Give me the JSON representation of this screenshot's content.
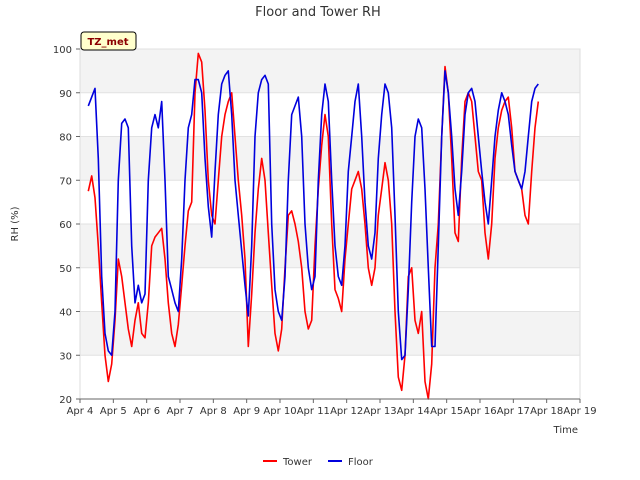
{
  "chart_data": {
    "type": "line",
    "title": "Floor and Tower RH",
    "xlabel": "Time",
    "ylabel": "RH (%)",
    "badge": "TZ_met",
    "ylim": [
      20,
      100
    ],
    "yticks": [
      20,
      30,
      40,
      50,
      60,
      70,
      80,
      90,
      100
    ],
    "xlim": [
      4,
      19
    ],
    "xticks": [
      {
        "value": 4,
        "label": "Apr 4"
      },
      {
        "value": 5,
        "label": "Apr 5"
      },
      {
        "value": 6,
        "label": "Apr 6"
      },
      {
        "value": 7,
        "label": "Apr 7"
      },
      {
        "value": 8,
        "label": "Apr 8"
      },
      {
        "value": 9,
        "label": "Apr 9"
      },
      {
        "value": 10,
        "label": "Apr 10"
      },
      {
        "value": 11,
        "label": "Apr 11"
      },
      {
        "value": 12,
        "label": "Apr 12"
      },
      {
        "value": 13,
        "label": "Apr 13"
      },
      {
        "value": 14,
        "label": "Apr 14"
      },
      {
        "value": 15,
        "label": "Apr 15"
      },
      {
        "value": 16,
        "label": "Apr 16"
      },
      {
        "value": 17,
        "label": "Apr 17"
      },
      {
        "value": 18,
        "label": "Apr 18"
      },
      {
        "value": 19,
        "label": "Apr 19"
      }
    ],
    "legend_position": "bottom-center",
    "series": [
      {
        "name": "Tower",
        "color": "#ff0000",
        "points": [
          [
            4.25,
            67.5
          ],
          [
            4.35,
            71
          ],
          [
            4.45,
            66
          ],
          [
            4.55,
            55
          ],
          [
            4.65,
            42
          ],
          [
            4.75,
            30
          ],
          [
            4.85,
            24
          ],
          [
            4.95,
            28
          ],
          [
            5.05,
            38
          ],
          [
            5.15,
            52
          ],
          [
            5.25,
            48
          ],
          [
            5.35,
            42
          ],
          [
            5.45,
            36
          ],
          [
            5.55,
            32
          ],
          [
            5.65,
            38
          ],
          [
            5.75,
            42
          ],
          [
            5.85,
            35
          ],
          [
            5.95,
            34
          ],
          [
            6.05,
            42
          ],
          [
            6.15,
            55
          ],
          [
            6.25,
            57
          ],
          [
            6.35,
            58
          ],
          [
            6.45,
            59
          ],
          [
            6.55,
            52
          ],
          [
            6.65,
            42
          ],
          [
            6.75,
            35
          ],
          [
            6.85,
            32
          ],
          [
            6.95,
            37
          ],
          [
            7.05,
            46
          ],
          [
            7.15,
            55
          ],
          [
            7.25,
            63
          ],
          [
            7.35,
            65
          ],
          [
            7.45,
            90
          ],
          [
            7.55,
            99
          ],
          [
            7.65,
            97
          ],
          [
            7.75,
            86
          ],
          [
            7.85,
            70
          ],
          [
            7.95,
            62
          ],
          [
            8.05,
            60
          ],
          [
            8.15,
            70
          ],
          [
            8.25,
            80
          ],
          [
            8.35,
            85
          ],
          [
            8.45,
            88
          ],
          [
            8.55,
            90
          ],
          [
            8.65,
            80
          ],
          [
            8.75,
            70
          ],
          [
            8.85,
            62
          ],
          [
            8.95,
            52
          ],
          [
            9.05,
            32
          ],
          [
            9.15,
            44
          ],
          [
            9.25,
            58
          ],
          [
            9.35,
            68
          ],
          [
            9.45,
            75
          ],
          [
            9.55,
            70
          ],
          [
            9.65,
            58
          ],
          [
            9.75,
            46
          ],
          [
            9.85,
            35
          ],
          [
            9.95,
            31
          ],
          [
            10.05,
            36
          ],
          [
            10.15,
            50
          ],
          [
            10.25,
            62
          ],
          [
            10.35,
            63
          ],
          [
            10.45,
            60
          ],
          [
            10.55,
            56
          ],
          [
            10.65,
            50
          ],
          [
            10.75,
            40
          ],
          [
            10.85,
            36
          ],
          [
            10.95,
            38
          ],
          [
            11.05,
            55
          ],
          [
            11.15,
            68
          ],
          [
            11.25,
            78
          ],
          [
            11.35,
            85
          ],
          [
            11.45,
            80
          ],
          [
            11.55,
            60
          ],
          [
            11.65,
            45
          ],
          [
            11.75,
            43
          ],
          [
            11.85,
            40
          ],
          [
            11.95,
            52
          ],
          [
            12.05,
            60
          ],
          [
            12.15,
            68
          ],
          [
            12.25,
            70
          ],
          [
            12.35,
            72
          ],
          [
            12.45,
            68
          ],
          [
            12.55,
            60
          ],
          [
            12.65,
            50
          ],
          [
            12.75,
            46
          ],
          [
            12.85,
            50
          ],
          [
            12.95,
            62
          ],
          [
            13.05,
            68
          ],
          [
            13.15,
            74
          ],
          [
            13.25,
            70
          ],
          [
            13.35,
            60
          ],
          [
            13.45,
            40
          ],
          [
            13.55,
            25
          ],
          [
            13.65,
            22
          ],
          [
            13.75,
            30
          ],
          [
            13.85,
            48
          ],
          [
            13.95,
            50
          ],
          [
            14.05,
            38
          ],
          [
            14.15,
            35
          ],
          [
            14.25,
            40
          ],
          [
            14.35,
            24
          ],
          [
            14.45,
            20
          ],
          [
            14.55,
            28
          ],
          [
            14.65,
            50
          ],
          [
            14.75,
            60
          ],
          [
            14.85,
            80
          ],
          [
            14.95,
            96
          ],
          [
            15.05,
            90
          ],
          [
            15.15,
            75
          ],
          [
            15.25,
            58
          ],
          [
            15.35,
            56
          ],
          [
            15.45,
            75
          ],
          [
            15.55,
            88
          ],
          [
            15.65,
            90
          ],
          [
            15.75,
            88
          ],
          [
            15.85,
            80
          ],
          [
            15.95,
            72
          ],
          [
            16.05,
            70
          ],
          [
            16.15,
            58
          ],
          [
            16.25,
            52
          ],
          [
            16.35,
            60
          ],
          [
            16.45,
            75
          ],
          [
            16.55,
            82
          ],
          [
            16.65,
            86
          ],
          [
            16.75,
            88
          ],
          [
            16.85,
            89
          ],
          [
            16.95,
            82
          ],
          [
            17.05,
            72
          ],
          [
            17.15,
            70
          ],
          [
            17.25,
            68
          ],
          [
            17.35,
            62
          ],
          [
            17.45,
            60
          ],
          [
            17.55,
            72
          ],
          [
            17.65,
            82
          ],
          [
            17.75,
            88
          ]
        ]
      },
      {
        "name": "Floor",
        "color": "#0000dd",
        "points": [
          [
            4.25,
            87
          ],
          [
            4.35,
            89
          ],
          [
            4.45,
            91
          ],
          [
            4.55,
            75
          ],
          [
            4.65,
            48
          ],
          [
            4.75,
            35
          ],
          [
            4.85,
            31
          ],
          [
            4.95,
            30
          ],
          [
            5.05,
            40
          ],
          [
            5.15,
            70
          ],
          [
            5.25,
            83
          ],
          [
            5.35,
            84
          ],
          [
            5.45,
            82
          ],
          [
            5.55,
            55
          ],
          [
            5.65,
            42
          ],
          [
            5.75,
            46
          ],
          [
            5.85,
            42
          ],
          [
            5.95,
            44
          ],
          [
            6.05,
            70
          ],
          [
            6.15,
            82
          ],
          [
            6.25,
            85
          ],
          [
            6.35,
            82
          ],
          [
            6.45,
            88
          ],
          [
            6.55,
            70
          ],
          [
            6.65,
            48
          ],
          [
            6.75,
            45
          ],
          [
            6.85,
            42
          ],
          [
            6.95,
            40
          ],
          [
            7.05,
            52
          ],
          [
            7.15,
            70
          ],
          [
            7.25,
            82
          ],
          [
            7.35,
            85
          ],
          [
            7.45,
            93
          ],
          [
            7.55,
            93
          ],
          [
            7.65,
            90
          ],
          [
            7.75,
            75
          ],
          [
            7.85,
            64
          ],
          [
            7.95,
            57
          ],
          [
            8.05,
            72
          ],
          [
            8.15,
            85
          ],
          [
            8.25,
            92
          ],
          [
            8.35,
            94
          ],
          [
            8.45,
            95
          ],
          [
            8.55,
            85
          ],
          [
            8.65,
            70
          ],
          [
            8.75,
            62
          ],
          [
            8.95,
            46
          ],
          [
            9.05,
            39
          ],
          [
            9.15,
            55
          ],
          [
            9.25,
            80
          ],
          [
            9.35,
            90
          ],
          [
            9.45,
            93
          ],
          [
            9.55,
            94
          ],
          [
            9.65,
            92
          ],
          [
            9.75,
            60
          ],
          [
            9.85,
            45
          ],
          [
            9.95,
            40
          ],
          [
            10.05,
            38
          ],
          [
            10.15,
            48
          ],
          [
            10.25,
            70
          ],
          [
            10.35,
            85
          ],
          [
            10.45,
            87
          ],
          [
            10.55,
            89
          ],
          [
            10.65,
            80
          ],
          [
            10.75,
            60
          ],
          [
            10.85,
            50
          ],
          [
            10.95,
            45
          ],
          [
            11.05,
            48
          ],
          [
            11.15,
            70
          ],
          [
            11.25,
            85
          ],
          [
            11.35,
            92
          ],
          [
            11.45,
            88
          ],
          [
            11.55,
            70
          ],
          [
            11.65,
            55
          ],
          [
            11.75,
            48
          ],
          [
            11.85,
            46
          ],
          [
            11.95,
            55
          ],
          [
            12.05,
            72
          ],
          [
            12.15,
            80
          ],
          [
            12.25,
            88
          ],
          [
            12.35,
            92
          ],
          [
            12.45,
            80
          ],
          [
            12.55,
            65
          ],
          [
            12.65,
            55
          ],
          [
            12.75,
            52
          ],
          [
            12.85,
            58
          ],
          [
            12.95,
            75
          ],
          [
            13.05,
            85
          ],
          [
            13.15,
            92
          ],
          [
            13.25,
            90
          ],
          [
            13.35,
            82
          ],
          [
            13.45,
            62
          ],
          [
            13.55,
            40
          ],
          [
            13.65,
            29
          ],
          [
            13.75,
            30
          ],
          [
            13.85,
            45
          ],
          [
            13.95,
            65
          ],
          [
            14.05,
            80
          ],
          [
            14.15,
            84
          ],
          [
            14.25,
            82
          ],
          [
            14.35,
            68
          ],
          [
            14.45,
            50
          ],
          [
            14.55,
            32
          ],
          [
            14.65,
            32
          ],
          [
            14.75,
            55
          ],
          [
            14.85,
            80
          ],
          [
            14.95,
            95
          ],
          [
            15.05,
            90
          ],
          [
            15.15,
            80
          ],
          [
            15.25,
            68
          ],
          [
            15.35,
            62
          ],
          [
            15.45,
            72
          ],
          [
            15.55,
            85
          ],
          [
            15.65,
            90
          ],
          [
            15.75,
            91
          ],
          [
            15.85,
            88
          ],
          [
            15.95,
            80
          ],
          [
            16.05,
            72
          ],
          [
            16.15,
            65
          ],
          [
            16.25,
            60
          ],
          [
            16.35,
            70
          ],
          [
            16.45,
            80
          ],
          [
            16.55,
            86
          ],
          [
            16.65,
            90
          ],
          [
            16.75,
            88
          ],
          [
            16.85,
            85
          ],
          [
            16.95,
            78
          ],
          [
            17.05,
            72
          ],
          [
            17.15,
            70
          ],
          [
            17.25,
            68
          ],
          [
            17.35,
            72
          ],
          [
            17.45,
            80
          ],
          [
            17.55,
            88
          ],
          [
            17.65,
            91
          ],
          [
            17.75,
            92
          ]
        ]
      }
    ]
  }
}
